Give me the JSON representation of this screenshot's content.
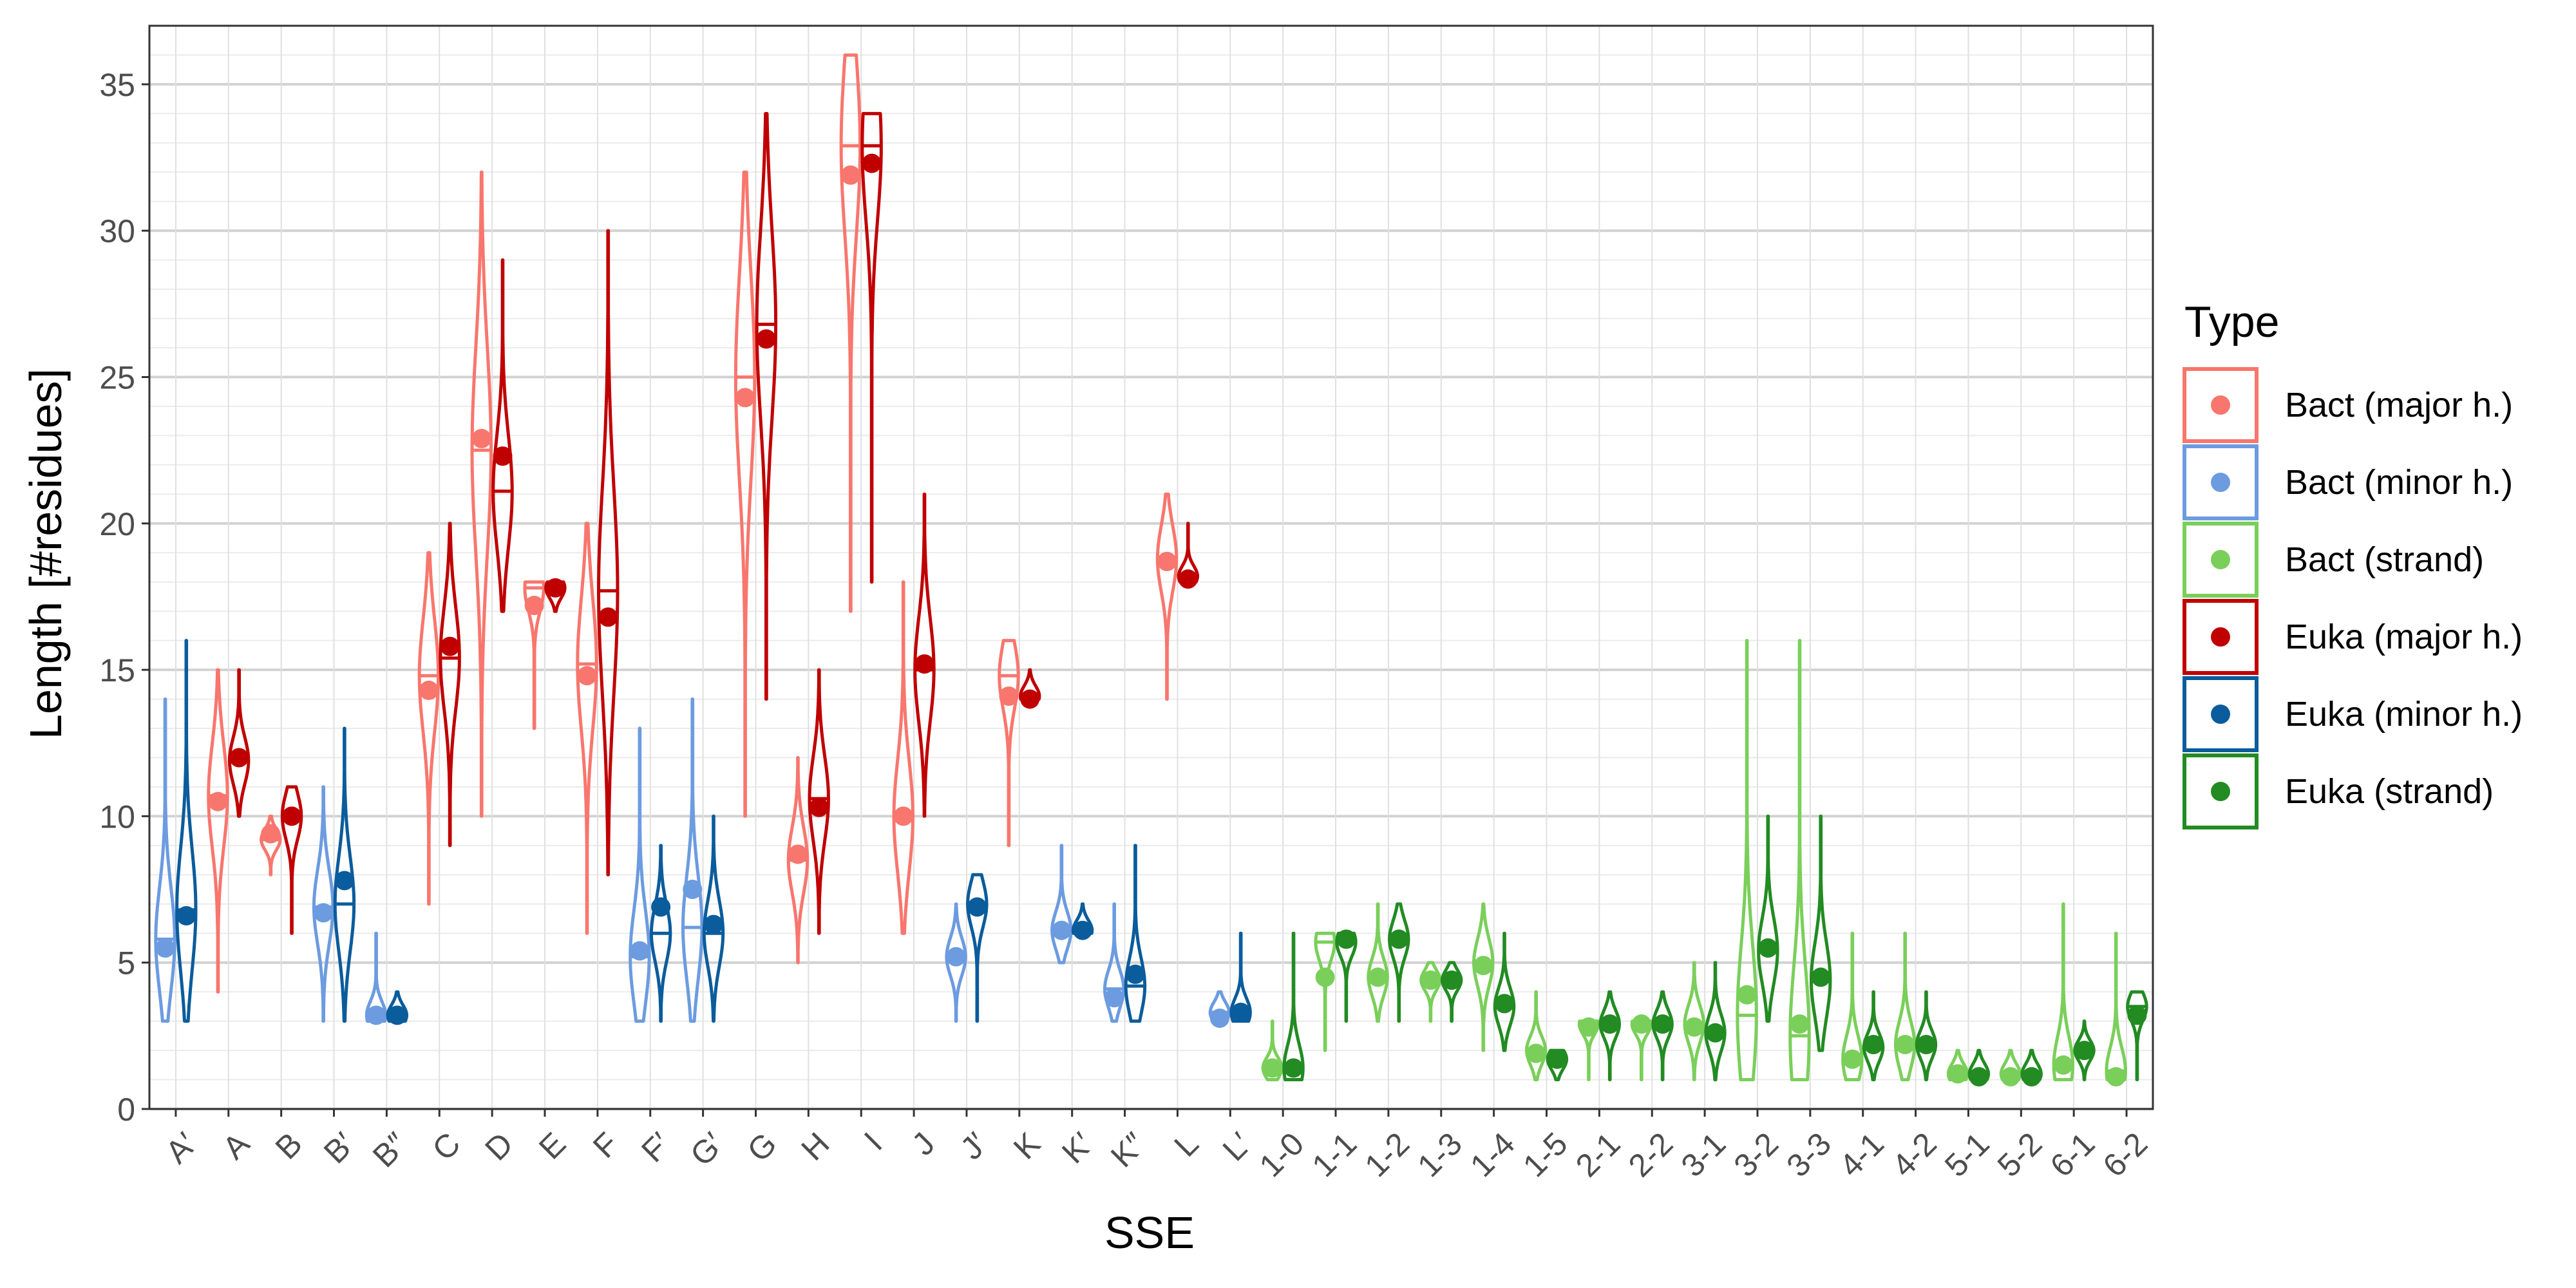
{
  "chart_data": {
    "type": "violin",
    "xlabel": "SSE",
    "ylabel": "Length [#residues]",
    "ylim": [
      0,
      37
    ],
    "yticks": [
      0,
      5,
      10,
      15,
      20,
      25,
      30,
      35
    ],
    "grid": true,
    "legend_position": "right",
    "legend_title": "Type",
    "categories": [
      "A′",
      "A",
      "B",
      "B′",
      "B″",
      "C",
      "D",
      "E",
      "F",
      "F′",
      "G′",
      "G",
      "H",
      "I",
      "J",
      "J′",
      "K",
      "K′",
      "K″",
      "L",
      "L′",
      "1-0",
      "1-1",
      "1-2",
      "1-3",
      "1-4",
      "1-5",
      "2-1",
      "2-2",
      "3-1",
      "3-2",
      "3-3",
      "4-1",
      "4-2",
      "5-1",
      "5-2",
      "6-1",
      "6-2"
    ],
    "series": [
      {
        "name": "Bact (major h.)",
        "color": "#F8766D",
        "points": [
          {
            "x": "A",
            "min": 4,
            "max": 15,
            "mean": 10.5,
            "median": 10.7
          },
          {
            "x": "B",
            "min": 8,
            "max": 10,
            "mean": 9.4,
            "median": 9.2
          },
          {
            "x": "C",
            "min": 7,
            "max": 19,
            "mean": 14.3,
            "median": 14.8
          },
          {
            "x": "D",
            "min": 10,
            "max": 32,
            "mean": 22.9,
            "median": 22.5
          },
          {
            "x": "E",
            "min": 13,
            "max": 18,
            "mean": 17.2,
            "median": 17.8
          },
          {
            "x": "F",
            "min": 6,
            "max": 20,
            "mean": 14.8,
            "median": 15.2
          },
          {
            "x": "G",
            "min": 10,
            "max": 32,
            "mean": 24.3,
            "median": 25
          },
          {
            "x": "H",
            "min": 5,
            "max": 12,
            "mean": 8.7,
            "median": 8.5
          },
          {
            "x": "I",
            "min": 17,
            "max": 36,
            "mean": 31.9,
            "median": 32.9
          },
          {
            "x": "J",
            "min": 6,
            "max": 18,
            "mean": 10,
            "median": 10
          },
          {
            "x": "K",
            "min": 9,
            "max": 16,
            "mean": 14.1,
            "median": 14.8
          },
          {
            "x": "L",
            "min": 14,
            "max": 21,
            "mean": 18.7,
            "median": 18.8
          }
        ]
      },
      {
        "name": "Bact (minor h.)",
        "color": "#6C9BE0",
        "points": [
          {
            "x": "A′",
            "min": 3,
            "max": 14,
            "mean": 5.5,
            "median": 5.8
          },
          {
            "x": "B′",
            "min": 3,
            "max": 11,
            "mean": 6.7,
            "median": 6.9
          },
          {
            "x": "B″",
            "min": 3,
            "max": 6,
            "mean": 3.2,
            "median": 3.2
          },
          {
            "x": "F′",
            "min": 3,
            "max": 13,
            "mean": 5.4,
            "median": 5.2
          },
          {
            "x": "G′",
            "min": 3,
            "max": 14,
            "mean": 7.5,
            "median": 6.2
          },
          {
            "x": "J′",
            "min": 3,
            "max": 7,
            "mean": 5.2,
            "median": 5.2
          },
          {
            "x": "K′",
            "min": 5,
            "max": 9,
            "mean": 6.1,
            "median": 6.1
          },
          {
            "x": "K″",
            "min": 3,
            "max": 7,
            "mean": 3.8,
            "median": 4.1
          },
          {
            "x": "L′",
            "min": 3,
            "max": 4,
            "mean": 3.1,
            "median": 3.3
          }
        ]
      },
      {
        "name": "Bact (strand)",
        "color": "#7ACF5A",
        "points": [
          {
            "x": "1-0",
            "min": 1,
            "max": 3,
            "mean": 1.4,
            "median": 1.4
          },
          {
            "x": "1-1",
            "min": 2,
            "max": 6,
            "mean": 4.5,
            "median": 5.7
          },
          {
            "x": "1-2",
            "min": 3,
            "max": 7,
            "mean": 4.5,
            "median": 4.5
          },
          {
            "x": "1-3",
            "min": 3,
            "max": 5,
            "mean": 4.4,
            "median": 4.4
          },
          {
            "x": "1-4",
            "min": 2,
            "max": 7,
            "mean": 4.9,
            "median": 5
          },
          {
            "x": "1-5",
            "min": 1,
            "max": 4,
            "mean": 1.9,
            "median": 2
          },
          {
            "x": "2-1",
            "min": 1,
            "max": 3,
            "mean": 2.8,
            "median": 2.9
          },
          {
            "x": "2-2",
            "min": 1,
            "max": 3,
            "mean": 2.9,
            "median": 2.9
          },
          {
            "x": "3-1",
            "min": 1,
            "max": 5,
            "mean": 2.8,
            "median": 2.9
          },
          {
            "x": "3-2",
            "min": 1,
            "max": 16,
            "mean": 3.9,
            "median": 3.2
          },
          {
            "x": "3-3",
            "min": 1,
            "max": 16,
            "mean": 2.9,
            "median": 2.5
          },
          {
            "x": "4-1",
            "min": 1,
            "max": 6,
            "mean": 1.7,
            "median": 1.7
          },
          {
            "x": "4-2",
            "min": 1,
            "max": 6,
            "mean": 2.2,
            "median": 2.2
          },
          {
            "x": "5-1",
            "min": 1,
            "max": 2,
            "mean": 1.2,
            "median": 1.2
          },
          {
            "x": "5-2",
            "min": 1,
            "max": 2,
            "mean": 1.1,
            "median": 1.2
          },
          {
            "x": "6-1",
            "min": 1,
            "max": 7,
            "mean": 1.5,
            "median": 1.5
          },
          {
            "x": "6-2",
            "min": 1,
            "max": 6,
            "mean": 1.1,
            "median": 1.3
          }
        ]
      },
      {
        "name": "Euka (major h.)",
        "color": "#C00000",
        "points": [
          {
            "x": "A",
            "min": 10,
            "max": 15,
            "mean": 12,
            "median": 11.9
          },
          {
            "x": "B",
            "min": 6,
            "max": 11,
            "mean": 10,
            "median": 10
          },
          {
            "x": "C",
            "min": 9,
            "max": 20,
            "mean": 15.8,
            "median": 15.4
          },
          {
            "x": "D",
            "min": 17,
            "max": 29,
            "mean": 22.3,
            "median": 21.1
          },
          {
            "x": "E",
            "min": 17,
            "max": 18,
            "mean": 17.8,
            "median": 17.8
          },
          {
            "x": "F",
            "min": 8,
            "max": 30,
            "mean": 16.8,
            "median": 17.7
          },
          {
            "x": "G",
            "min": 14,
            "max": 34,
            "mean": 26.3,
            "median": 26.8
          },
          {
            "x": "H",
            "min": 6,
            "max": 15,
            "mean": 10.3,
            "median": 10.6
          },
          {
            "x": "I",
            "min": 18,
            "max": 34,
            "mean": 32.3,
            "median": 32.9
          },
          {
            "x": "J",
            "min": 10,
            "max": 21,
            "mean": 15.2,
            "median": 15
          },
          {
            "x": "K",
            "min": 14,
            "max": 15,
            "mean": 14,
            "median": 14.1
          },
          {
            "x": "L",
            "min": 18,
            "max": 20,
            "mean": 18.1,
            "median": 18.2
          }
        ]
      },
      {
        "name": "Euka (minor h.)",
        "color": "#0A5C9C",
        "points": [
          {
            "x": "A′",
            "min": 3,
            "max": 16,
            "mean": 6.6,
            "median": 6.8
          },
          {
            "x": "B′",
            "min": 3,
            "max": 13,
            "mean": 7.8,
            "median": 7
          },
          {
            "x": "B″",
            "min": 3,
            "max": 4,
            "mean": 3.2,
            "median": 3.2
          },
          {
            "x": "F′",
            "min": 3,
            "max": 9,
            "mean": 6.9,
            "median": 6
          },
          {
            "x": "G′",
            "min": 3,
            "max": 10,
            "mean": 6.3,
            "median": 6
          },
          {
            "x": "J′",
            "min": 3,
            "max": 8,
            "mean": 6.9,
            "median": 7
          },
          {
            "x": "K′",
            "min": 6,
            "max": 7,
            "mean": 6.1,
            "median": 6.1
          },
          {
            "x": "K″",
            "min": 3,
            "max": 9,
            "mean": 4.6,
            "median": 4.2
          },
          {
            "x": "L′",
            "min": 3,
            "max": 6,
            "mean": 3.3,
            "median": 3.3
          }
        ]
      },
      {
        "name": "Euka (strand)",
        "color": "#228B22",
        "points": [
          {
            "x": "1-0",
            "min": 1,
            "max": 6,
            "mean": 1.4,
            "median": 1.4
          },
          {
            "x": "1-1",
            "min": 3,
            "max": 6,
            "mean": 5.8,
            "median": 5.7
          },
          {
            "x": "1-2",
            "min": 3,
            "max": 7,
            "mean": 5.8,
            "median": 5.8
          },
          {
            "x": "1-3",
            "min": 3,
            "max": 5,
            "mean": 4.4,
            "median": 4.4
          },
          {
            "x": "1-4",
            "min": 2,
            "max": 6,
            "mean": 3.6,
            "median": 3.5
          },
          {
            "x": "1-5",
            "min": 1,
            "max": 2,
            "mean": 1.7,
            "median": 1.7
          },
          {
            "x": "2-1",
            "min": 1,
            "max": 4,
            "mean": 2.9,
            "median": 2.9
          },
          {
            "x": "2-2",
            "min": 1,
            "max": 4,
            "mean": 2.9,
            "median": 2.9
          },
          {
            "x": "3-1",
            "min": 1,
            "max": 5,
            "mean": 2.6,
            "median": 2.6
          },
          {
            "x": "3-2",
            "min": 3,
            "max": 10,
            "mean": 5.5,
            "median": 5.4
          },
          {
            "x": "3-3",
            "min": 2,
            "max": 10,
            "mean": 4.5,
            "median": 4.4
          },
          {
            "x": "4-1",
            "min": 1,
            "max": 4,
            "mean": 2.2,
            "median": 2.1
          },
          {
            "x": "4-2",
            "min": 1,
            "max": 4,
            "mean": 2.2,
            "median": 2.2
          },
          {
            "x": "5-1",
            "min": 1,
            "max": 2,
            "mean": 1.1,
            "median": 1.2
          },
          {
            "x": "5-2",
            "min": 1,
            "max": 2,
            "mean": 1.1,
            "median": 1.2
          },
          {
            "x": "6-1",
            "min": 1,
            "max": 3,
            "mean": 2,
            "median": 2
          },
          {
            "x": "6-2",
            "min": 1,
            "max": 4,
            "mean": 3.2,
            "median": 3.5
          }
        ]
      }
    ]
  }
}
